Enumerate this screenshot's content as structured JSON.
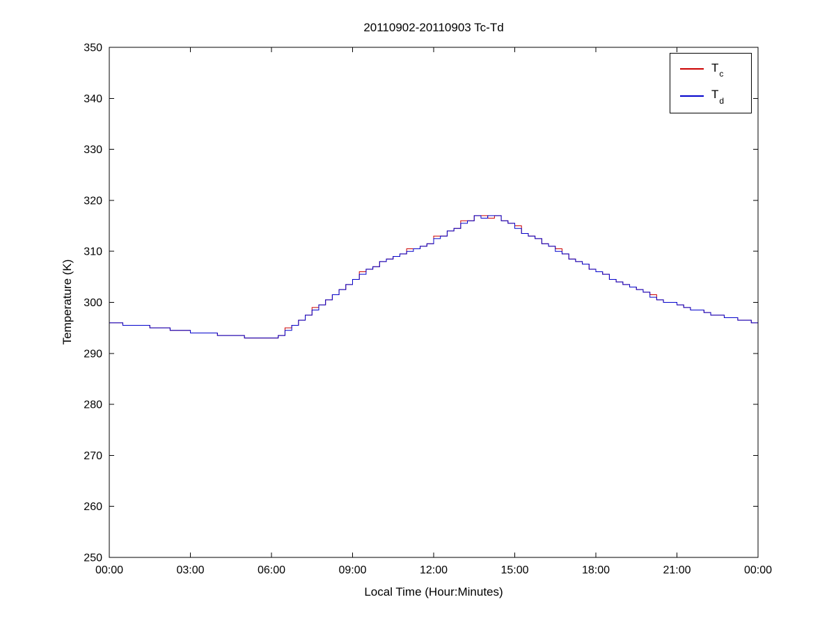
{
  "figure": {
    "background": "#ffffff"
  },
  "chart_data": {
    "type": "line",
    "title": "20110902-20110903 Tc-Td",
    "xlabel": "Local Time (Hour:Minutes)",
    "ylabel": "Temperature (K)",
    "xlim": [
      0,
      24
    ],
    "ylim": [
      250,
      350
    ],
    "grid": false,
    "interpolation": "step-after",
    "legend_position": "top-right",
    "xticks": {
      "values": [
        0,
        3,
        6,
        9,
        12,
        15,
        18,
        21,
        24
      ],
      "labels": [
        "00:00",
        "03:00",
        "06:00",
        "09:00",
        "12:00",
        "15:00",
        "18:00",
        "21:00",
        "00:00"
      ]
    },
    "yticks": [
      250,
      260,
      270,
      280,
      290,
      300,
      310,
      320,
      330,
      340,
      350
    ],
    "x_hours": [
      0,
      0.25,
      0.5,
      0.75,
      1,
      1.25,
      1.5,
      1.75,
      2,
      2.25,
      2.5,
      2.75,
      3,
      3.25,
      3.5,
      3.75,
      4,
      4.25,
      4.5,
      4.75,
      5,
      5.25,
      5.5,
      5.75,
      6,
      6.25,
      6.5,
      6.75,
      7,
      7.25,
      7.5,
      7.75,
      8,
      8.25,
      8.5,
      8.75,
      9,
      9.25,
      9.5,
      9.75,
      10,
      10.25,
      10.5,
      10.75,
      11,
      11.25,
      11.5,
      11.75,
      12,
      12.25,
      12.5,
      12.75,
      13,
      13.25,
      13.5,
      13.75,
      14,
      14.25,
      14.5,
      14.75,
      15,
      15.25,
      15.5,
      15.75,
      16,
      16.25,
      16.5,
      16.75,
      17,
      17.25,
      17.5,
      17.75,
      18,
      18.25,
      18.5,
      18.75,
      19,
      19.25,
      19.5,
      19.75,
      20,
      20.25,
      20.5,
      20.75,
      21,
      21.25,
      21.5,
      21.75,
      22,
      22.25,
      22.5,
      22.75,
      23,
      23.25,
      23.5,
      23.75,
      24
    ],
    "series": [
      {
        "name": "Tc",
        "label_main": "T",
        "label_sub": "c",
        "color": "#cc0000",
        "values": [
          296,
          296,
          295.5,
          295.5,
          295.5,
          295.5,
          295,
          295,
          295,
          294.5,
          294.5,
          294.5,
          294,
          294,
          294,
          294,
          293.5,
          293.5,
          293.5,
          293.5,
          293,
          293,
          293,
          293,
          293,
          293.5,
          295,
          295.5,
          296.5,
          297.5,
          299,
          299.5,
          300.5,
          301.5,
          302.5,
          303.5,
          304.5,
          306,
          306.5,
          307,
          308,
          308.5,
          309,
          309.5,
          310.5,
          310.5,
          311,
          311.5,
          313,
          313,
          314,
          314.5,
          316,
          316,
          317,
          317,
          316.5,
          317,
          316,
          315.5,
          315,
          313.5,
          313,
          312.5,
          311.5,
          311,
          310.5,
          309.5,
          308.5,
          308,
          307.5,
          306.5,
          306,
          305.5,
          304.5,
          304,
          303.5,
          303,
          302.5,
          302,
          301.5,
          300.5,
          300,
          300,
          299.5,
          299,
          298.5,
          298.5,
          298,
          297.5,
          297.5,
          297,
          297,
          296.5,
          296.5,
          296,
          296
        ]
      },
      {
        "name": "Td",
        "label_main": "T",
        "label_sub": "d",
        "color": "#0000cc",
        "values": [
          296,
          296,
          295.5,
          295.5,
          295.5,
          295.5,
          295,
          295,
          295,
          294.5,
          294.5,
          294.5,
          294,
          294,
          294,
          294,
          293.5,
          293.5,
          293.5,
          293.5,
          293,
          293,
          293,
          293,
          293,
          293.5,
          294.5,
          295.5,
          296.5,
          297.5,
          298.5,
          299.5,
          300.5,
          301.5,
          302.5,
          303.5,
          304.5,
          305.5,
          306.5,
          307,
          308,
          308.5,
          309,
          309.5,
          310,
          310.5,
          311,
          311.5,
          312.5,
          313,
          314,
          314.5,
          315.5,
          316,
          317,
          316.5,
          317,
          317,
          316,
          315.5,
          314.5,
          313.5,
          313,
          312.5,
          311.5,
          311,
          310,
          309.5,
          308.5,
          308,
          307.5,
          306.5,
          306,
          305.5,
          304.5,
          304,
          303.5,
          303,
          302.5,
          302,
          301,
          300.5,
          300,
          300,
          299.5,
          299,
          298.5,
          298.5,
          298,
          297.5,
          297.5,
          297,
          297,
          296.5,
          296.5,
          296,
          296
        ]
      }
    ]
  }
}
